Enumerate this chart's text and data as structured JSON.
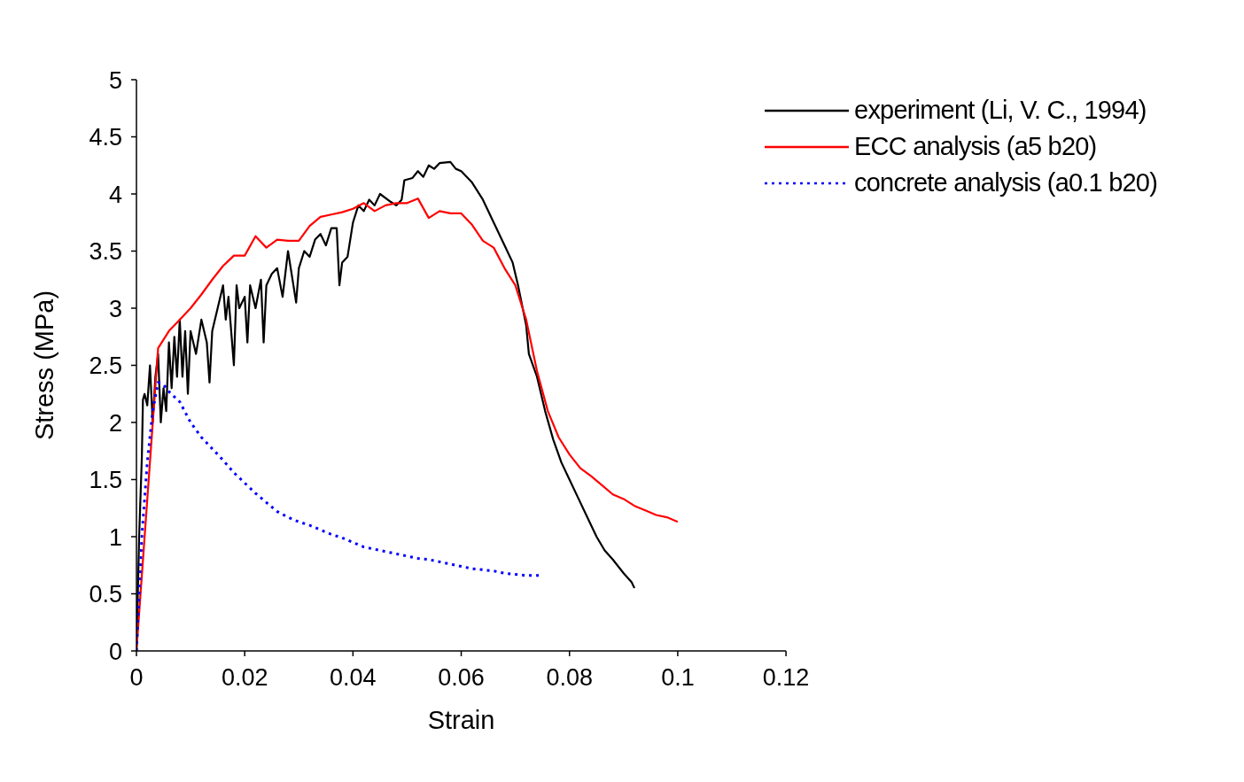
{
  "chart_data": {
    "type": "line",
    "xlabel": "Strain",
    "ylabel": "Stress (MPa)",
    "xlim": [
      0,
      0.12
    ],
    "xticks": [
      0,
      0.02,
      0.04,
      0.06,
      0.08,
      0.1,
      0.12
    ],
    "ylim": [
      0,
      5
    ],
    "yticks": [
      0,
      0.5,
      1,
      1.5,
      2,
      2.5,
      3,
      3.5,
      4,
      4.5,
      5
    ],
    "grid": false,
    "legend": "top right",
    "marker": "none",
    "series": [
      {
        "name": "experiment (Li, V. C., 1994)",
        "color": "#000000",
        "line_style": "solid",
        "x": [
          0,
          0.0005,
          0.001,
          0.0012,
          0.0015,
          0.002,
          0.0025,
          0.003,
          0.0035,
          0.004,
          0.0045,
          0.005,
          0.0055,
          0.006,
          0.0065,
          0.007,
          0.0075,
          0.008,
          0.0085,
          0.009,
          0.0095,
          0.01,
          0.011,
          0.012,
          0.013,
          0.0135,
          0.014,
          0.015,
          0.016,
          0.0165,
          0.017,
          0.018,
          0.0185,
          0.019,
          0.02,
          0.0205,
          0.021,
          0.022,
          0.023,
          0.0235,
          0.024,
          0.025,
          0.026,
          0.027,
          0.028,
          0.029,
          0.0295,
          0.03,
          0.031,
          0.032,
          0.033,
          0.034,
          0.035,
          0.036,
          0.037,
          0.0375,
          0.038,
          0.039,
          0.04,
          0.041,
          0.042,
          0.043,
          0.044,
          0.045,
          0.047,
          0.048,
          0.049,
          0.0495,
          0.051,
          0.052,
          0.053,
          0.054,
          0.055,
          0.056,
          0.058,
          0.059,
          0.06,
          0.062,
          0.064,
          0.066,
          0.068,
          0.0695,
          0.0705,
          0.072,
          0.0725,
          0.074,
          0.0755,
          0.077,
          0.0785,
          0.08,
          0.0815,
          0.083,
          0.085,
          0.0865,
          0.088,
          0.09,
          0.0915,
          0.092
        ],
        "values": [
          0,
          1.0,
          1.7,
          2.2,
          2.25,
          2.15,
          2.5,
          2.0,
          2.4,
          2.6,
          2.0,
          2.3,
          2.1,
          2.7,
          2.3,
          2.75,
          2.4,
          2.9,
          2.4,
          2.8,
          2.25,
          2.8,
          2.6,
          2.9,
          2.7,
          2.35,
          2.8,
          3.0,
          3.2,
          2.9,
          3.1,
          2.5,
          3.2,
          3.0,
          3.1,
          2.7,
          3.2,
          3.0,
          3.25,
          2.7,
          3.2,
          3.3,
          3.35,
          3.1,
          3.5,
          3.2,
          3.05,
          3.35,
          3.5,
          3.45,
          3.6,
          3.65,
          3.55,
          3.7,
          3.7,
          3.2,
          3.4,
          3.45,
          3.75,
          3.9,
          3.85,
          3.95,
          3.9,
          4.0,
          3.93,
          3.9,
          3.95,
          4.12,
          4.14,
          4.2,
          4.15,
          4.25,
          4.22,
          4.27,
          4.28,
          4.22,
          4.2,
          4.1,
          3.95,
          3.75,
          3.55,
          3.4,
          3.2,
          2.85,
          2.6,
          2.4,
          2.1,
          1.85,
          1.65,
          1.5,
          1.35,
          1.2,
          1.0,
          0.88,
          0.8,
          0.68,
          0.6,
          0.55
        ]
      },
      {
        "name": "ECC analysis (a5 b20)",
        "color": "#ff0000",
        "line_style": "solid",
        "x": [
          0,
          0.004,
          0.006,
          0.008,
          0.01,
          0.012,
          0.014,
          0.016,
          0.018,
          0.02,
          0.022,
          0.024,
          0.026,
          0.028,
          0.03,
          0.032,
          0.034,
          0.036,
          0.038,
          0.04,
          0.042,
          0.044,
          0.046,
          0.048,
          0.05,
          0.052,
          0.054,
          0.056,
          0.058,
          0.06,
          0.062,
          0.064,
          0.066,
          0.068,
          0.07,
          0.072,
          0.074,
          0.076,
          0.078,
          0.08,
          0.082,
          0.084,
          0.086,
          0.088,
          0.09,
          0.092,
          0.094,
          0.096,
          0.098,
          0.1
        ],
        "values": [
          0,
          2.65,
          2.8,
          2.9,
          3.0,
          3.12,
          3.25,
          3.37,
          3.46,
          3.46,
          3.63,
          3.53,
          3.6,
          3.59,
          3.59,
          3.72,
          3.8,
          3.82,
          3.84,
          3.87,
          3.92,
          3.85,
          3.9,
          3.92,
          3.92,
          3.96,
          3.79,
          3.85,
          3.83,
          3.83,
          3.73,
          3.59,
          3.53,
          3.35,
          3.2,
          2.9,
          2.45,
          2.1,
          1.87,
          1.72,
          1.6,
          1.53,
          1.45,
          1.37,
          1.33,
          1.27,
          1.23,
          1.19,
          1.17,
          1.13
        ]
      },
      {
        "name": "concrete analysis (a0.1 b20)",
        "color": "#0000ff",
        "line_style": "dotted",
        "x": [
          0,
          0.001,
          0.002,
          0.003,
          0.004,
          0.005,
          0.006,
          0.008,
          0.01,
          0.012,
          0.014,
          0.016,
          0.018,
          0.02,
          0.022,
          0.024,
          0.026,
          0.028,
          0.03,
          0.032,
          0.034,
          0.036,
          0.038,
          0.04,
          0.042,
          0.044,
          0.046,
          0.048,
          0.05,
          0.052,
          0.054,
          0.056,
          0.058,
          0.06,
          0.062,
          0.064,
          0.066,
          0.068,
          0.07,
          0.072,
          0.074,
          0.075
        ],
        "values": [
          0,
          1.0,
          1.65,
          2.1,
          2.35,
          2.33,
          2.27,
          2.18,
          2.0,
          1.87,
          1.77,
          1.67,
          1.56,
          1.47,
          1.38,
          1.3,
          1.22,
          1.17,
          1.13,
          1.1,
          1.06,
          1.02,
          0.99,
          0.95,
          0.91,
          0.89,
          0.87,
          0.85,
          0.83,
          0.81,
          0.8,
          0.78,
          0.76,
          0.74,
          0.72,
          0.71,
          0.7,
          0.68,
          0.67,
          0.66,
          0.66,
          0.66
        ]
      }
    ]
  }
}
